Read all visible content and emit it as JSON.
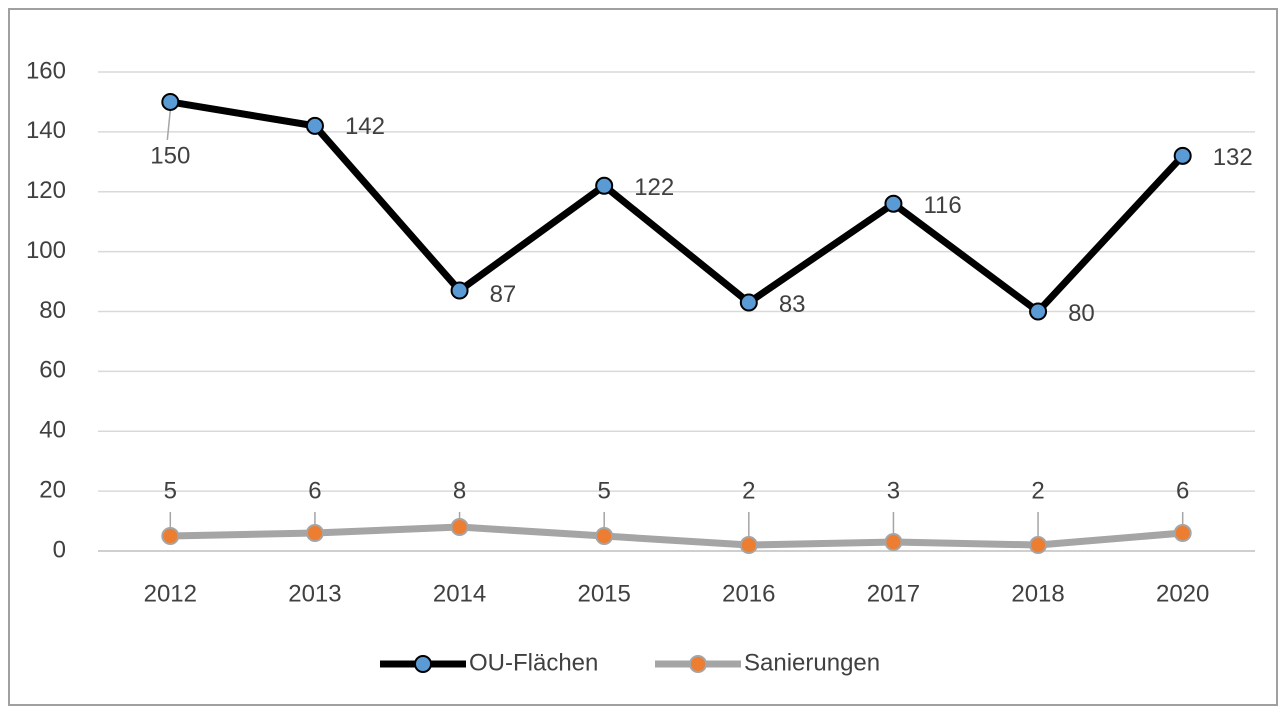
{
  "chart_data": {
    "type": "line",
    "categories": [
      "2012",
      "2013",
      "2014",
      "2015",
      "2016",
      "2017",
      "2018",
      "2020"
    ],
    "series": [
      {
        "name": "OU-Flächen",
        "color": "#000000",
        "marker_color": "#5b9bd5",
        "values": [
          150,
          142,
          87,
          122,
          83,
          116,
          80,
          132
        ]
      },
      {
        "name": "Sanierungen",
        "color": "#a5a5a5",
        "marker_color": "#ed7d31",
        "values": [
          5,
          6,
          8,
          5,
          2,
          3,
          2,
          6
        ]
      }
    ],
    "ylim": [
      0,
      160
    ],
    "yticks": [
      0,
      20,
      40,
      60,
      80,
      100,
      120,
      140,
      160
    ],
    "grid": true,
    "legend": "bottom"
  }
}
